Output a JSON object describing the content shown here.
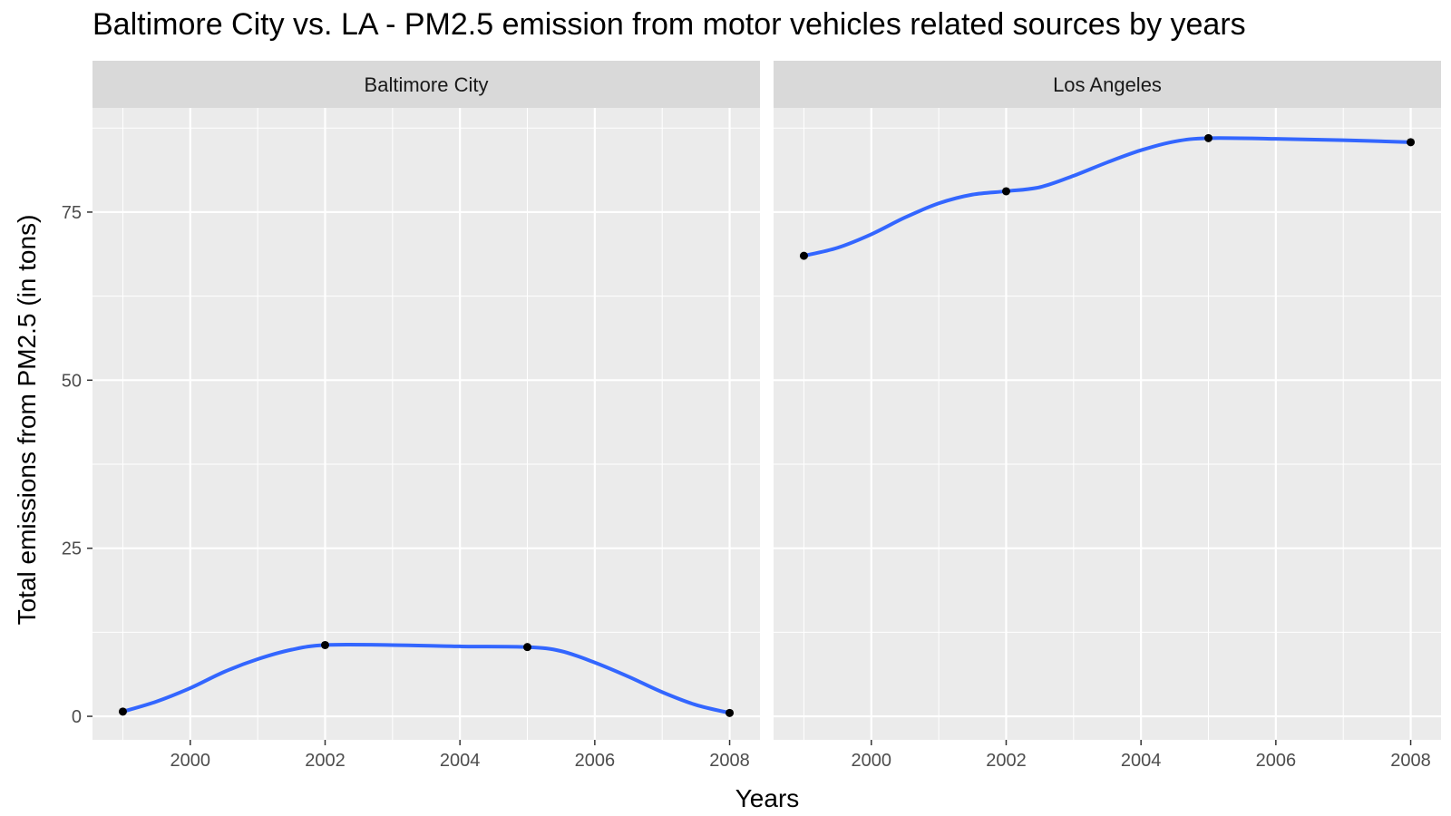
{
  "chart_data": {
    "type": "line",
    "title": "Baltimore City vs. LA - PM2.5 emission from motor vehicles related sources by years",
    "xlabel": "Years",
    "ylabel": "Total emissions from PM2.5 (in tons)",
    "x_ticks": [
      2000,
      2002,
      2004,
      2006,
      2008
    ],
    "y_ticks": [
      0,
      25,
      50,
      75
    ],
    "xlim": [
      1998.55,
      2008.45
    ],
    "ylim": [
      -3.5,
      90.5
    ],
    "grid": true,
    "facets": [
      {
        "name": "Baltimore City",
        "points": {
          "x": [
            1999,
            2002,
            2005,
            2008
          ],
          "y": [
            0.7,
            10.6,
            10.3,
            0.5
          ]
        },
        "smooth": {
          "x": [
            1999,
            1999.5,
            2000,
            2000.5,
            2001,
            2001.5,
            2002,
            2003,
            2004,
            2005,
            2005.5,
            2006,
            2006.5,
            2007,
            2007.5,
            2008
          ],
          "y": [
            0.7,
            2.2,
            4.2,
            6.6,
            8.5,
            9.9,
            10.6,
            10.6,
            10.4,
            10.3,
            9.7,
            8.0,
            5.9,
            3.6,
            1.7,
            0.5
          ]
        }
      },
      {
        "name": "Los Angeles",
        "points": {
          "x": [
            1999,
            2002,
            2005,
            2008
          ],
          "y": [
            68.5,
            78.1,
            86.0,
            85.4
          ]
        },
        "smooth": {
          "x": [
            1999,
            1999.5,
            2000,
            2000.5,
            2001,
            2001.5,
            2002,
            2002.5,
            2003,
            2003.5,
            2004,
            2004.5,
            2005,
            2006,
            2007,
            2008
          ],
          "y": [
            68.5,
            69.7,
            71.7,
            74.2,
            76.3,
            77.6,
            78.1,
            78.7,
            80.4,
            82.4,
            84.2,
            85.5,
            86.0,
            85.9,
            85.7,
            85.4
          ]
        }
      }
    ],
    "colors": {
      "line": "#3366ff",
      "point": "#000000",
      "panel_bg": "#ebebeb",
      "strip_bg": "#d9d9d9",
      "grid": "#ffffff",
      "axis_text": "#4d4d4d"
    }
  }
}
